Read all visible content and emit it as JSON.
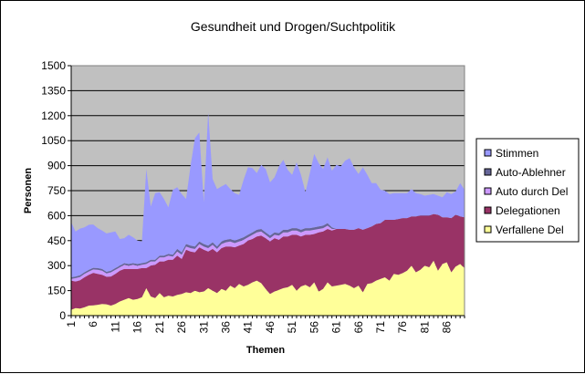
{
  "chart_data": {
    "type": "area",
    "stacked": true,
    "title": "Gesundheit und Drogen/Suchtpolitik",
    "xlabel": "Themen",
    "ylabel": "Personen",
    "ylim": [
      0,
      1500
    ],
    "yticks": [
      0,
      150,
      300,
      450,
      600,
      750,
      900,
      1050,
      1200,
      1350,
      1500
    ],
    "x_first": 1,
    "x_last": 90,
    "x_tick_labels": [
      "1",
      "6",
      "11",
      "16",
      "21",
      "26",
      "31",
      "36",
      "41",
      "46",
      "51",
      "56",
      "61",
      "66",
      "71",
      "76",
      "81",
      "86"
    ],
    "grid": true,
    "legend_position": "right",
    "plot_background": "#c0c0c0",
    "series": [
      {
        "name": "Verfallene Del",
        "color": "#ffff99",
        "values": [
          35,
          45,
          42,
          50,
          60,
          62,
          65,
          70,
          68,
          60,
          70,
          85,
          95,
          105,
          95,
          100,
          110,
          165,
          115,
          105,
          135,
          110,
          120,
          115,
          125,
          130,
          140,
          135,
          150,
          140,
          145,
          165,
          150,
          135,
          160,
          150,
          180,
          165,
          190,
          175,
          185,
          200,
          210,
          195,
          160,
          130,
          145,
          155,
          165,
          170,
          185,
          150,
          175,
          185,
          170,
          200,
          145,
          160,
          200,
          175,
          180,
          185,
          190,
          180,
          165,
          180,
          140,
          190,
          195,
          210,
          220,
          230,
          210,
          250,
          245,
          255,
          270,
          300,
          260,
          275,
          300,
          290,
          330,
          270,
          310,
          320,
          260,
          295,
          310,
          285
        ]
      },
      {
        "name": "Delegationen",
        "color": "#993366",
        "values": [
          175,
          160,
          170,
          180,
          185,
          195,
          185,
          175,
          165,
          175,
          180,
          185,
          185,
          175,
          185,
          180,
          175,
          120,
          185,
          200,
          190,
          215,
          215,
          220,
          235,
          210,
          255,
          250,
          230,
          270,
          250,
          220,
          250,
          245,
          245,
          265,
          235,
          245,
          230,
          255,
          265,
          260,
          265,
          285,
          305,
          315,
          320,
          300,
          310,
          305,
          300,
          335,
          300,
          300,
          315,
          290,
          355,
          345,
          320,
          335,
          340,
          335,
          330,
          335,
          350,
          345,
          375,
          335,
          340,
          340,
          335,
          345,
          365,
          325,
          335,
          330,
          315,
          295,
          335,
          325,
          300,
          310,
          280,
          335,
          280,
          270,
          325,
          310,
          285,
          305
        ]
      },
      {
        "name": "Auto durch Del",
        "color": "#cc99ff",
        "values": [
          10,
          20,
          20,
          20,
          20,
          20,
          25,
          25,
          20,
          25,
          25,
          20,
          25,
          20,
          25,
          20,
          20,
          25,
          25,
          20,
          25,
          25,
          25,
          20,
          25,
          25,
          20,
          20,
          20,
          20,
          20,
          20,
          25,
          20,
          25,
          25,
          30,
          25,
          25,
          25,
          20,
          25,
          25,
          25,
          20,
          20,
          20,
          25,
          25,
          25,
          25,
          25,
          25,
          25,
          25,
          25,
          20,
          20,
          20,
          10,
          0,
          0,
          0,
          0,
          0,
          0,
          0,
          0,
          0,
          0,
          0,
          0,
          0,
          0,
          0,
          0,
          0,
          0,
          0,
          0,
          0,
          0,
          0,
          0,
          0,
          0,
          0,
          0,
          0,
          0
        ]
      },
      {
        "name": "Auto-Ablehner",
        "color": "#666699",
        "values": [
          10,
          10,
          10,
          10,
          10,
          10,
          10,
          10,
          10,
          10,
          10,
          10,
          10,
          10,
          10,
          10,
          10,
          10,
          10,
          10,
          10,
          10,
          10,
          10,
          15,
          15,
          15,
          15,
          15,
          15,
          15,
          15,
          15,
          15,
          15,
          15,
          15,
          15,
          15,
          15,
          15,
          15,
          15,
          15,
          15,
          15,
          15,
          15,
          15,
          15,
          15,
          15,
          15,
          15,
          15,
          15,
          15,
          15,
          15,
          10,
          0,
          0,
          0,
          0,
          0,
          0,
          0,
          0,
          0,
          0,
          0,
          0,
          0,
          0,
          0,
          0,
          0,
          0,
          0,
          0,
          0,
          0,
          0,
          0,
          0,
          0,
          0,
          0,
          0,
          0
        ]
      },
      {
        "name": "Stimmen",
        "color": "#9999ff",
        "values": [
          330,
          270,
          280,
          270,
          270,
          260,
          240,
          230,
          230,
          230,
          220,
          160,
          150,
          175,
          155,
          140,
          130,
          560,
          320,
          400,
          380,
          340,
          280,
          390,
          370,
          350,
          270,
          480,
          650,
          655,
          250,
          800,
          380,
          345,
          330,
          335,
          300,
          285,
          265,
          345,
          405,
          385,
          340,
          385,
          380,
          320,
          330,
          400,
          420,
          360,
          320,
          395,
          330,
          215,
          330,
          440,
          380,
          340,
          395,
          340,
          385,
          375,
          410,
          430,
          375,
          325,
          375,
          320,
          260,
          245,
          200,
          175,
          155,
          160,
          155,
          150,
          150,
          165,
          140,
          130,
          120,
          125,
          120,
          115,
          120,
          150,
          145,
          140,
          200,
          165
        ]
      }
    ]
  }
}
